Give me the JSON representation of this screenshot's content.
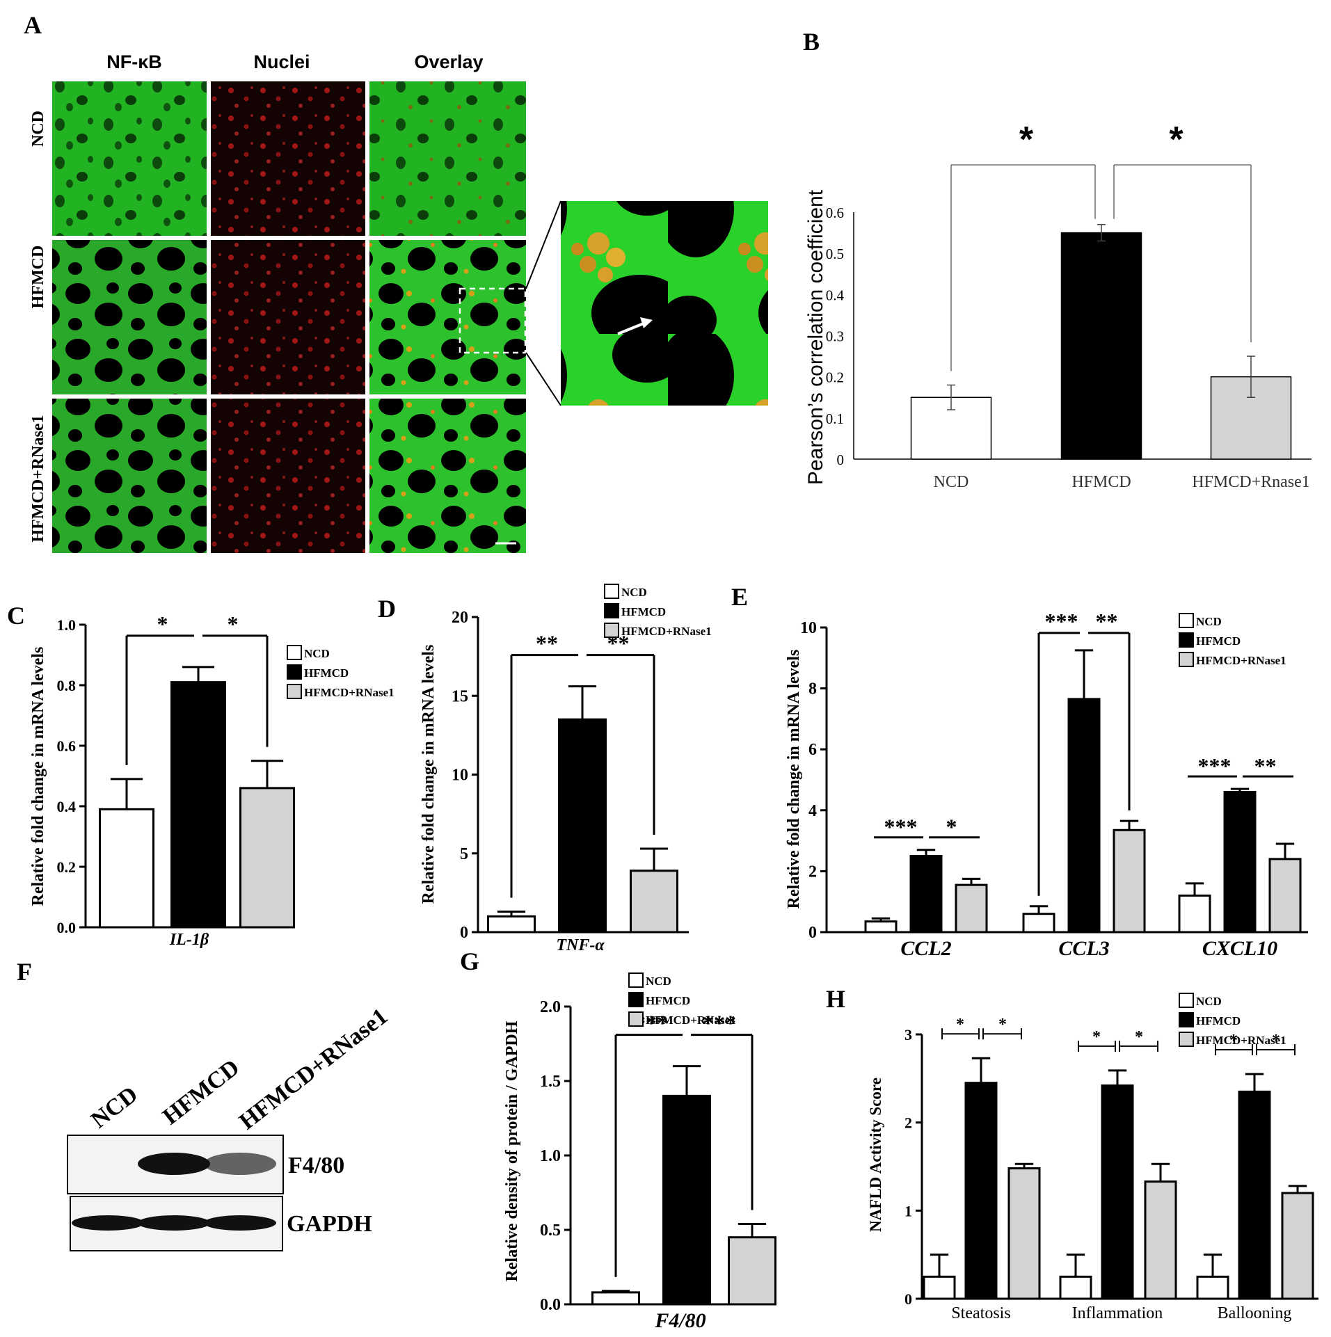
{
  "colors": {
    "ncd": "#ffffff",
    "hfmcd": "#000000",
    "rnase": "#d3d3d3",
    "stroke": "#000000"
  },
  "panelA": {
    "letter": "A",
    "columns": [
      "NF-κB",
      "Nuclei",
      "Overlay"
    ],
    "rows": [
      "NCD",
      "HFMCD",
      "HFMCD+RNase1"
    ]
  },
  "panelF": {
    "letter": "F",
    "lanes": [
      "NCD",
      "HFMCD",
      "HFMCD+RNase1"
    ],
    "bands": [
      "F4/80",
      "GAPDH"
    ],
    "band_intensity": {
      "F4/80": [
        0.0,
        1.0,
        0.55
      ],
      "GAPDH": [
        1.0,
        1.0,
        1.0
      ]
    }
  },
  "chart_data": [
    {
      "id": "B",
      "type": "bar",
      "letter": "B",
      "categories": [
        "NCD",
        "HFMCD",
        "HFMCD+Rnase1"
      ],
      "values": [
        0.15,
        0.55,
        0.2
      ],
      "errors": [
        0.03,
        0.02,
        0.05
      ],
      "ylabel": "Pearson’s correlation coefficient",
      "ylim": [
        0,
        0.6
      ],
      "yticks": [
        "0",
        "0.1",
        "0.2",
        "0.3",
        "0.4",
        "0.5",
        "0.6"
      ],
      "sig": [
        "*",
        "*"
      ]
    },
    {
      "id": "C",
      "type": "bar",
      "letter": "C",
      "categories": [
        "NCD",
        "HFMCD",
        "HFMCD+RNase1"
      ],
      "values": [
        0.39,
        0.81,
        0.46
      ],
      "errors": [
        0.1,
        0.05,
        0.09
      ],
      "ylabel": "Relative fold change in mRNA levels",
      "xlabel": "IL-1β",
      "ylim": [
        0,
        1.0
      ],
      "yticks": [
        "0.0",
        "0.2",
        "0.4",
        "0.6",
        "0.8",
        "1.0"
      ],
      "legend": [
        "NCD",
        "HFMCD",
        "HFMCD+RNase1"
      ],
      "sig": [
        "*",
        "*"
      ]
    },
    {
      "id": "D",
      "type": "bar",
      "letter": "D",
      "categories": [
        "NCD",
        "HFMCD",
        "HFMCD+RNase1"
      ],
      "values": [
        1.0,
        13.5,
        3.9
      ],
      "errors": [
        0.3,
        2.1,
        1.4
      ],
      "ylabel": "Relative fold change in mRNA levels",
      "xlabel": "TNF-α",
      "ylim": [
        0,
        20
      ],
      "yticks": [
        "0",
        "5",
        "10",
        "15",
        "20"
      ],
      "legend": [
        "NCD",
        "HFMCD",
        "HFMCD+RNase1"
      ],
      "sig": [
        "**",
        "**"
      ]
    },
    {
      "id": "E",
      "type": "bar",
      "letter": "E",
      "groups": [
        "CCL2",
        "CCL3",
        "CXCL10"
      ],
      "series": [
        {
          "name": "NCD",
          "values": [
            0.35,
            0.6,
            1.2
          ],
          "errors": [
            0.1,
            0.25,
            0.4
          ]
        },
        {
          "name": "HFMCD",
          "values": [
            2.5,
            7.65,
            4.6
          ],
          "errors": [
            0.2,
            1.6,
            0.1
          ]
        },
        {
          "name": "HFMCD+RNase1",
          "values": [
            1.55,
            3.35,
            2.4
          ],
          "errors": [
            0.2,
            0.3,
            0.5
          ]
        }
      ],
      "ylabel": "Relative fold change in mRNA levels",
      "ylim": [
        0,
        10
      ],
      "yticks": [
        "0",
        "2",
        "4",
        "6",
        "8",
        "10"
      ],
      "legend": [
        "NCD",
        "HFMCD",
        "HFMCD+RNase1"
      ],
      "sig": [
        [
          "***",
          "*"
        ],
        [
          "***",
          "**"
        ],
        [
          "***",
          "**"
        ]
      ]
    },
    {
      "id": "G",
      "type": "bar",
      "letter": "G",
      "categories": [
        "NCD",
        "HFMCD",
        "HFMCD+RNase1"
      ],
      "values": [
        0.08,
        1.4,
        0.45
      ],
      "errors": [
        0.01,
        0.2,
        0.09
      ],
      "ylabel": "Relative density of protein / GAPDH",
      "xlabel": "F4/80",
      "ylim": [
        0,
        2.0
      ],
      "yticks": [
        "0.0",
        "0.5",
        "1.0",
        "1.5",
        "2.0"
      ],
      "legend": [
        "NCD",
        "HFMCD",
        "HFMCD+RNase1"
      ],
      "sig": [
        "***",
        "***"
      ]
    },
    {
      "id": "H",
      "type": "bar",
      "letter": "H",
      "groups": [
        "Steatosis",
        "Inflammation",
        "Ballooning"
      ],
      "series": [
        {
          "name": "NCD",
          "values": [
            0.25,
            0.25,
            0.25
          ],
          "errors": [
            0.25,
            0.25,
            0.25
          ]
        },
        {
          "name": "HFMCD",
          "values": [
            2.45,
            2.42,
            2.35
          ],
          "errors": [
            0.28,
            0.17,
            0.2
          ]
        },
        {
          "name": "HFMCD+RNase1",
          "values": [
            1.48,
            1.33,
            1.2
          ],
          "errors": [
            0.05,
            0.2,
            0.08
          ]
        }
      ],
      "ylabel": "NAFLD Activity Score",
      "ylim": [
        0,
        3
      ],
      "yticks": [
        "0",
        "1",
        "2",
        "3"
      ],
      "legend": [
        "NCD",
        "HFMCD",
        "HFMCD+RNase1"
      ],
      "sig": [
        [
          "*",
          "*"
        ],
        [
          "*",
          "*"
        ],
        [
          "*",
          "*"
        ]
      ]
    }
  ]
}
